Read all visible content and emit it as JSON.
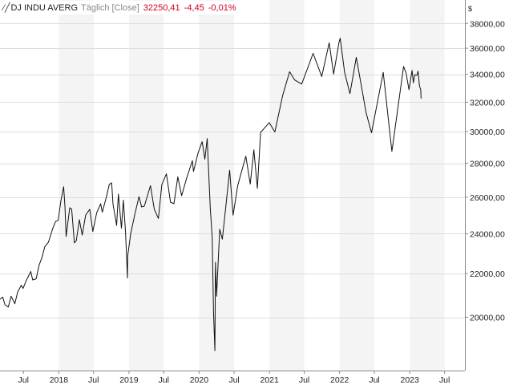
{
  "legend": {
    "icon": "line-chart-icon",
    "symbol": "DJ INDU AVERG",
    "frequency": "Täglich [Close]",
    "last_value": "32250,41",
    "change": "-4,45",
    "change_pct": "-0,01%"
  },
  "colors": {
    "line": "#111111",
    "negative": "#d0021b",
    "band_light": "#f4f4f4",
    "gridline": "#dddddd"
  },
  "chart_data": {
    "type": "line",
    "title": "",
    "xlabel": "",
    "ylabel": "$",
    "y_scale": "log",
    "grid": true,
    "legend_position": "top-left",
    "currency_label": "$",
    "x_range": [
      "2017-03-01",
      "2023-10-15"
    ],
    "ylim": [
      17800,
      40000
    ],
    "x_ticks": [
      {
        "date": "2017-07-01",
        "label": "Jul"
      },
      {
        "date": "2018-01-01",
        "label": "2018"
      },
      {
        "date": "2018-07-01",
        "label": "Jul"
      },
      {
        "date": "2019-01-01",
        "label": "2019"
      },
      {
        "date": "2019-07-01",
        "label": "Jul"
      },
      {
        "date": "2020-01-01",
        "label": "2020"
      },
      {
        "date": "2020-07-01",
        "label": "Jul"
      },
      {
        "date": "2021-01-01",
        "label": "2021"
      },
      {
        "date": "2021-07-01",
        "label": "Jul"
      },
      {
        "date": "2022-01-01",
        "label": "2022"
      },
      {
        "date": "2022-07-01",
        "label": "Jul"
      },
      {
        "date": "2023-01-01",
        "label": "2023"
      },
      {
        "date": "2023-07-01",
        "label": "Jul"
      }
    ],
    "y_ticks": [
      {
        "value": 20000,
        "label": "20000,00"
      },
      {
        "value": 22000,
        "label": "22000,00"
      },
      {
        "value": 24000,
        "label": "24000,00"
      },
      {
        "value": 26000,
        "label": "26000,00"
      },
      {
        "value": 28000,
        "label": "28000,00"
      },
      {
        "value": 30000,
        "label": "30000,00"
      },
      {
        "value": 32000,
        "label": "32000,00"
      },
      {
        "value": 34000,
        "label": "34000,00"
      },
      {
        "value": 36000,
        "label": "36000,00"
      },
      {
        "value": 38000,
        "label": "38000,00"
      }
    ],
    "series": [
      {
        "points": [
          [
            "2017-03-01",
            20800
          ],
          [
            "2017-03-15",
            20900
          ],
          [
            "2017-03-27",
            20550
          ],
          [
            "2017-04-13",
            20450
          ],
          [
            "2017-04-28",
            20940
          ],
          [
            "2017-05-17",
            20600
          ],
          [
            "2017-06-01",
            21140
          ],
          [
            "2017-06-20",
            21450
          ],
          [
            "2017-06-29",
            21300
          ],
          [
            "2017-07-14",
            21640
          ],
          [
            "2017-08-08",
            22100
          ],
          [
            "2017-08-18",
            21700
          ],
          [
            "2017-09-05",
            21750
          ],
          [
            "2017-09-20",
            22400
          ],
          [
            "2017-10-05",
            22780
          ],
          [
            "2017-10-20",
            23330
          ],
          [
            "2017-11-08",
            23560
          ],
          [
            "2017-11-30",
            24270
          ],
          [
            "2017-12-15",
            24650
          ],
          [
            "2017-12-29",
            24720
          ],
          [
            "2018-01-12",
            25800
          ],
          [
            "2018-01-26",
            26600
          ],
          [
            "2018-02-02",
            25500
          ],
          [
            "2018-02-08",
            23860
          ],
          [
            "2018-02-27",
            25400
          ],
          [
            "2018-03-09",
            25330
          ],
          [
            "2018-03-23",
            23530
          ],
          [
            "2018-04-02",
            23640
          ],
          [
            "2018-04-18",
            24750
          ],
          [
            "2018-05-03",
            23930
          ],
          [
            "2018-05-21",
            25010
          ],
          [
            "2018-06-11",
            25320
          ],
          [
            "2018-06-27",
            24120
          ],
          [
            "2018-07-17",
            25120
          ],
          [
            "2018-08-07",
            25630
          ],
          [
            "2018-08-15",
            25160
          ],
          [
            "2018-09-04",
            25950
          ],
          [
            "2018-09-21",
            26740
          ],
          [
            "2018-10-03",
            26830
          ],
          [
            "2018-10-10",
            25600
          ],
          [
            "2018-10-29",
            24440
          ],
          [
            "2018-11-07",
            26180
          ],
          [
            "2018-11-23",
            24290
          ],
          [
            "2018-12-03",
            25830
          ],
          [
            "2018-12-14",
            24100
          ],
          [
            "2018-12-24",
            21790
          ],
          [
            "2018-12-26",
            22880
          ],
          [
            "2019-01-10",
            24000
          ],
          [
            "2019-02-01",
            25060
          ],
          [
            "2019-02-22",
            26030
          ],
          [
            "2019-03-08",
            25450
          ],
          [
            "2019-03-22",
            25500
          ],
          [
            "2019-04-23",
            26660
          ],
          [
            "2019-05-13",
            25320
          ],
          [
            "2019-06-03",
            24820
          ],
          [
            "2019-06-21",
            26720
          ],
          [
            "2019-07-15",
            27360
          ],
          [
            "2019-08-05",
            25720
          ],
          [
            "2019-08-23",
            25630
          ],
          [
            "2019-09-12",
            27180
          ],
          [
            "2019-10-02",
            26080
          ],
          [
            "2019-10-28",
            27090
          ],
          [
            "2019-11-27",
            28160
          ],
          [
            "2019-12-03",
            27500
          ],
          [
            "2019-12-27",
            28650
          ],
          [
            "2020-01-17",
            29350
          ],
          [
            "2020-01-31",
            28250
          ],
          [
            "2020-02-12",
            29550
          ],
          [
            "2020-02-28",
            25400
          ],
          [
            "2020-03-09",
            23850
          ],
          [
            "2020-03-16",
            20190
          ],
          [
            "2020-03-23",
            18590
          ],
          [
            "2020-03-26",
            22550
          ],
          [
            "2020-04-01",
            20940
          ],
          [
            "2020-04-17",
            24240
          ],
          [
            "2020-05-01",
            23720
          ],
          [
            "2020-06-08",
            27570
          ],
          [
            "2020-06-26",
            25000
          ],
          [
            "2020-07-20",
            26680
          ],
          [
            "2020-08-31",
            28430
          ],
          [
            "2020-09-23",
            26760
          ],
          [
            "2020-10-12",
            28840
          ],
          [
            "2020-10-30",
            26500
          ],
          [
            "2020-11-16",
            29950
          ],
          [
            "2020-12-31",
            30600
          ],
          [
            "2021-01-29",
            29980
          ],
          [
            "2021-03-11",
            32480
          ],
          [
            "2021-04-16",
            34200
          ],
          [
            "2021-05-12",
            33590
          ],
          [
            "2021-06-18",
            33290
          ],
          [
            "2021-08-16",
            35600
          ],
          [
            "2021-09-30",
            33840
          ],
          [
            "2021-11-08",
            36430
          ],
          [
            "2021-12-01",
            34020
          ],
          [
            "2021-12-29",
            36490
          ],
          [
            "2022-01-04",
            36800
          ],
          [
            "2022-01-27",
            34160
          ],
          [
            "2022-02-24",
            32600
          ],
          [
            "2022-03-29",
            35290
          ],
          [
            "2022-05-19",
            31250
          ],
          [
            "2022-06-16",
            29930
          ],
          [
            "2022-08-16",
            34150
          ],
          [
            "2022-09-30",
            28730
          ],
          [
            "2022-11-30",
            34590
          ],
          [
            "2022-12-13",
            34110
          ],
          [
            "2022-12-28",
            32880
          ],
          [
            "2023-01-13",
            34300
          ],
          [
            "2023-01-20",
            33380
          ],
          [
            "2023-01-27",
            33980
          ],
          [
            "2023-02-03",
            33930
          ],
          [
            "2023-02-08",
            33950
          ],
          [
            "2023-02-13",
            34250
          ],
          [
            "2023-02-21",
            33130
          ],
          [
            "2023-02-27",
            32890
          ],
          [
            "2023-03-01",
            32250
          ]
        ]
      }
    ]
  }
}
